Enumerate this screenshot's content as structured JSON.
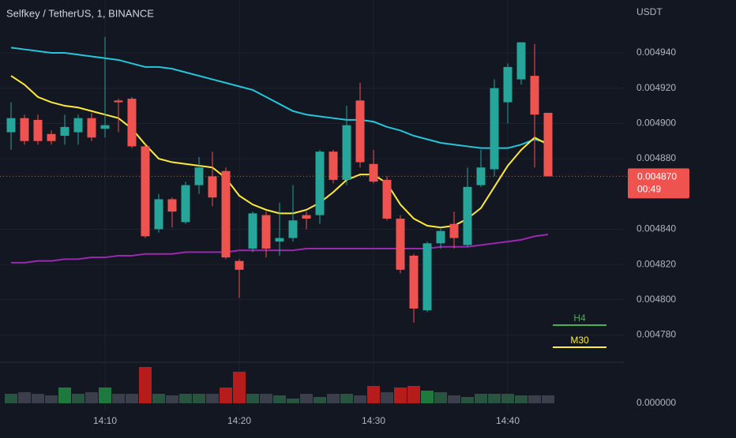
{
  "chart_data": {
    "type": "candlestick",
    "title": "Selfkey / TetherUS, 1, BINANCE",
    "currency": "USDT",
    "categories": [
      null,
      null,
      null,
      null,
      null,
      null,
      null,
      "14:10",
      null,
      null,
      null,
      null,
      null,
      null,
      null,
      null,
      null,
      "14:20",
      null,
      null,
      null,
      null,
      null,
      null,
      null,
      null,
      null,
      "14:30",
      null,
      null,
      null,
      null,
      null,
      null,
      null,
      null,
      null,
      "14:40",
      null,
      null,
      null
    ],
    "up_color": "#26a69a",
    "down_color": "#ef5350",
    "candles": {
      "open": [
        0.004895,
        0.004903,
        0.004902,
        0.004894,
        0.004893,
        0.004895,
        0.004903,
        0.004897,
        0.004913,
        0.004914,
        0.004887,
        0.00484,
        0.004857,
        0.004844,
        0.004865,
        0.00487,
        0.004873,
        0.004822,
        0.004829,
        0.004848,
        0.004833,
        0.004835,
        0.004848,
        0.004848,
        0.004884,
        0.004868,
        0.004913,
        0.004877,
        0.004868,
        0.004846,
        0.004825,
        0.004794,
        0.004832,
        0.004843,
        0.004831,
        0.004865,
        0.004874,
        0.004912,
        0.004925,
        0.004927,
        0.004906
      ],
      "high": [
        0.004912,
        0.004905,
        0.004905,
        0.004896,
        0.004905,
        0.004905,
        0.004906,
        0.004949,
        0.004914,
        0.004915,
        0.004888,
        0.00486,
        0.004858,
        0.004867,
        0.004881,
        0.004884,
        0.004875,
        0.004823,
        0.00485,
        0.00485,
        0.004855,
        0.004865,
        0.00485,
        0.004885,
        0.004885,
        0.00491,
        0.004923,
        0.004885,
        0.00487,
        0.004848,
        0.004826,
        0.004833,
        0.004841,
        0.00485,
        0.004875,
        0.004885,
        0.004925,
        0.004934,
        0.004946,
        0.004945,
        0.004906
      ],
      "low": [
        0.004885,
        0.004888,
        0.004888,
        0.004888,
        0.004888,
        0.004888,
        0.00489,
        0.004892,
        0.004895,
        0.004886,
        0.004835,
        0.004838,
        0.004841,
        0.004843,
        0.00486,
        0.004853,
        0.004823,
        0.004801,
        0.004827,
        0.004824,
        0.004825,
        0.004833,
        0.00484,
        0.004843,
        0.004866,
        0.004865,
        0.004875,
        0.004866,
        0.004845,
        0.004815,
        0.004787,
        0.004793,
        0.004829,
        0.004829,
        0.00483,
        0.004864,
        0.00487,
        0.0049,
        0.004922,
        0.004875,
        0.00487
      ],
      "close": [
        0.004903,
        0.00489,
        0.00489,
        0.00489,
        0.004898,
        0.004903,
        0.004892,
        0.004899,
        0.004912,
        0.004887,
        0.004836,
        0.004857,
        0.00485,
        0.004865,
        0.004875,
        0.004858,
        0.004824,
        0.004817,
        0.004849,
        0.004829,
        0.004835,
        0.004845,
        0.004846,
        0.004884,
        0.004868,
        0.004899,
        0.004878,
        0.004867,
        0.004846,
        0.004817,
        0.004795,
        0.004832,
        0.004839,
        0.004835,
        0.004864,
        0.004875,
        0.00492,
        0.004932,
        0.004946,
        0.004905,
        0.00487
      ]
    },
    "moving_averages": [
      {
        "color": "#26c6da",
        "values": [
          0.004943,
          0.004942,
          0.004941,
          0.00494,
          0.00494,
          0.004939,
          0.004938,
          0.004937,
          0.004936,
          0.004934,
          0.004932,
          0.004932,
          0.004931,
          0.004929,
          0.004927,
          0.004925,
          0.004923,
          0.004921,
          0.004919,
          0.004915,
          0.004911,
          0.004907,
          0.004905,
          0.004904,
          0.004903,
          0.004902,
          0.004902,
          0.004901,
          0.004898,
          0.004896,
          0.004893,
          0.004891,
          0.004889,
          0.004888,
          0.004887,
          0.004886,
          0.004886,
          0.004886,
          0.004888,
          0.004891,
          0.004889
        ]
      },
      {
        "color": "#ffeb3b",
        "values": [
          0.004927,
          0.004922,
          0.004915,
          0.004912,
          0.00491,
          0.004909,
          0.004907,
          0.004905,
          0.004903,
          0.004897,
          0.004888,
          0.00488,
          0.004878,
          0.004877,
          0.004876,
          0.004875,
          0.004869,
          0.004859,
          0.004854,
          0.004851,
          0.004849,
          0.004849,
          0.004851,
          0.004855,
          0.004861,
          0.004868,
          0.004871,
          0.004871,
          0.004866,
          0.004854,
          0.004846,
          0.004842,
          0.004841,
          0.004842,
          0.004846,
          0.004852,
          0.004864,
          0.004876,
          0.004885,
          0.004892,
          0.004888
        ]
      },
      {
        "color": "#9c27b0",
        "values": [
          0.004821,
          0.004821,
          0.004822,
          0.004822,
          0.004823,
          0.004823,
          0.004824,
          0.004824,
          0.004825,
          0.004825,
          0.004826,
          0.004826,
          0.004826,
          0.004827,
          0.004827,
          0.004827,
          0.004827,
          0.004828,
          0.004828,
          0.004828,
          0.004828,
          0.004828,
          0.004829,
          0.004829,
          0.004829,
          0.004829,
          0.004829,
          0.004829,
          0.004829,
          0.004829,
          0.004829,
          0.004829,
          0.00483,
          0.00483,
          0.00483,
          0.004831,
          0.004832,
          0.004833,
          0.004834,
          0.004836,
          0.004837
        ]
      }
    ],
    "ylim": [
      0.004765,
      0.00497
    ],
    "yticks": [
      {
        "value": 0.00478,
        "label": "0.004780"
      },
      {
        "value": 0.0048,
        "label": "0.004800"
      },
      {
        "value": 0.00482,
        "label": "0.004820"
      },
      {
        "value": 0.00484,
        "label": "0.004840"
      },
      {
        "value": 0.00488,
        "label": "0.004880"
      },
      {
        "value": 0.0049,
        "label": "0.004900"
      },
      {
        "value": 0.00492,
        "label": "0.004920"
      },
      {
        "value": 0.00494,
        "label": "0.004940"
      }
    ],
    "last_price": {
      "value": 0.00487,
      "label": "0.004870"
    },
    "countdown": "00:49",
    "volume": {
      "values": [
        12,
        14,
        12,
        10,
        20,
        12,
        14,
        20,
        12,
        12,
        46,
        12,
        10,
        12,
        12,
        12,
        20,
        40,
        12,
        12,
        10,
        6,
        12,
        8,
        12,
        12,
        10,
        22,
        14,
        20,
        22,
        16,
        14,
        10,
        8,
        12,
        12,
        12,
        10,
        10,
        10
      ],
      "ylim": [
        0,
        50
      ],
      "yticks": [
        {
          "value": 0,
          "label": "0.000000"
        }
      ]
    },
    "levels": [
      {
        "name": "H4",
        "color": "#4caf50"
      },
      {
        "name": "M30",
        "color": "#ffeb3b"
      }
    ]
  }
}
